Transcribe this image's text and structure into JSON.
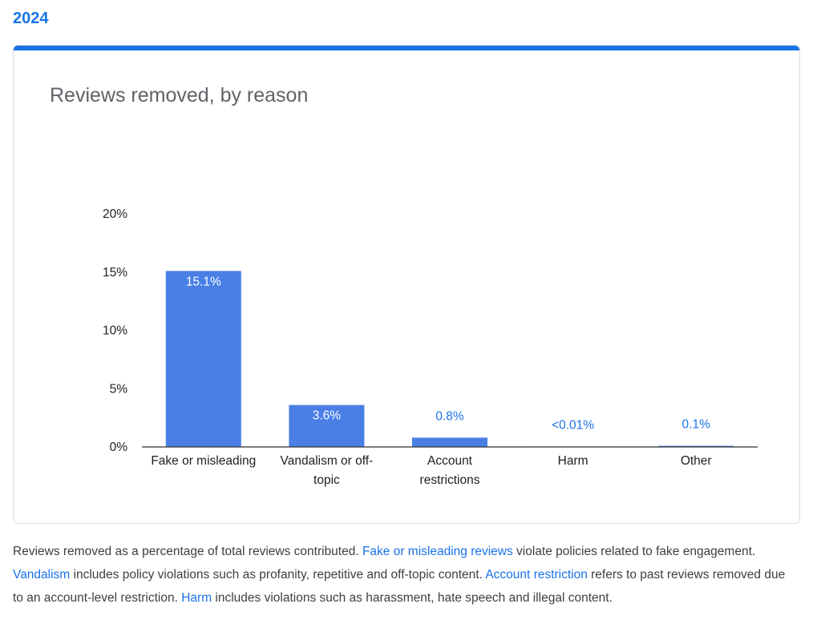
{
  "header": {
    "year": "2024"
  },
  "chart_data": {
    "type": "bar",
    "title": "Reviews removed, by reason",
    "xlabel": "",
    "ylabel": "",
    "categories": [
      "Fake or misleading",
      "Vandalism or off-topic",
      "Account restrictions",
      "Harm",
      "Other"
    ],
    "category_lines": [
      [
        "Fake or misleading"
      ],
      [
        "Vandalism or off-",
        "topic"
      ],
      [
        "Account",
        "restrictions"
      ],
      [
        "Harm"
      ],
      [
        "Other"
      ]
    ],
    "values": [
      15.1,
      3.6,
      0.8,
      0.005,
      0.1
    ],
    "data_labels": [
      "15.1%",
      "3.6%",
      "0.8%",
      "<0.01%",
      "0.1%"
    ],
    "ylim": [
      0,
      20
    ],
    "yticks": [
      "0%",
      "5%",
      "10%",
      "15%",
      "20%"
    ],
    "ytick_values": [
      0,
      5,
      10,
      15,
      20
    ],
    "grid": false,
    "bar_color": "#4a7fe6",
    "label_inside_color": "#ffffff",
    "label_outside_color": "#1a73e8"
  },
  "caption": {
    "t1": "Reviews removed as a percentage of total reviews contributed. ",
    "l1": "Fake or misleading reviews",
    "t2": " violate policies related to fake engagement. ",
    "l2": "Vandalism",
    "t3": " includes policy violations such as profanity, repetitive and off-topic content. ",
    "l3": "Account restriction",
    "t4": " refers to past reviews removed due to an account-level restriction. ",
    "l4": "Harm",
    "t5": " includes violations such as harassment, hate speech and illegal content."
  }
}
